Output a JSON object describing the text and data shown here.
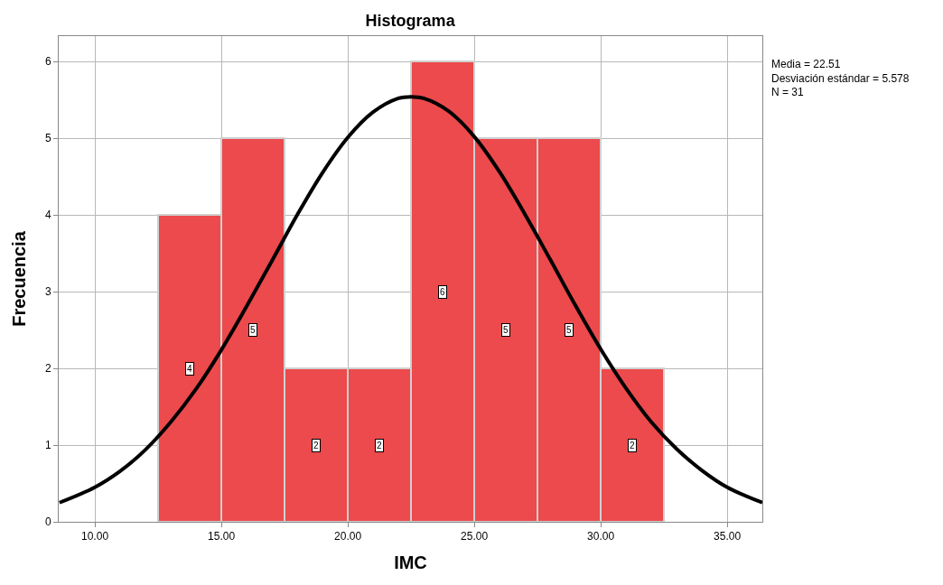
{
  "chart_data": {
    "type": "histogram",
    "title": "Histograma",
    "xlabel": "IMC",
    "ylabel": "Frecuencia",
    "bins": [
      12.5,
      15,
      17.5,
      20,
      22.5,
      25,
      27.5,
      30,
      32.5
    ],
    "values": [
      4,
      5,
      2,
      2,
      6,
      5,
      5,
      2
    ],
    "color": "#ec4a4c",
    "value_labels": [
      "4",
      "5",
      "2",
      "2",
      "6",
      "5",
      "5",
      "2"
    ],
    "series": [
      {
        "type": "line",
        "color": "#000000",
        "x": [
          8.6,
          10,
          11,
          12,
          13,
          14,
          15,
          16,
          17,
          18,
          19,
          20,
          21,
          22,
          22.5,
          23,
          24,
          25,
          26,
          27,
          28,
          29,
          30,
          31,
          32,
          33,
          34,
          35,
          36.39
        ],
        "values": [
          0.25,
          0.45,
          0.66,
          0.94,
          1.3,
          1.73,
          2.24,
          2.81,
          3.4,
          4.0,
          4.55,
          5.01,
          5.34,
          5.52,
          5.54,
          5.52,
          5.35,
          5.02,
          4.56,
          4.01,
          3.42,
          2.82,
          2.25,
          1.74,
          1.3,
          0.95,
          0.67,
          0.45,
          0.25
        ]
      }
    ],
    "xlim": [
      8.57,
      36.39
    ],
    "xticks": [
      {
        "value": 10,
        "label": "10.00"
      },
      {
        "value": 15,
        "label": "15.00"
      },
      {
        "value": 20,
        "label": "20.00"
      },
      {
        "value": 25,
        "label": "25.00"
      },
      {
        "value": 30,
        "label": "30.00"
      },
      {
        "value": 35,
        "label": "35.00"
      }
    ],
    "ylim": [
      0,
      6.33
    ],
    "yticks": [
      0,
      1,
      2,
      3,
      4,
      5,
      6
    ],
    "grid": true,
    "annotations": [
      "Media = 22.51",
      "Desviación estándar = 5.578",
      "N = 31"
    ]
  }
}
